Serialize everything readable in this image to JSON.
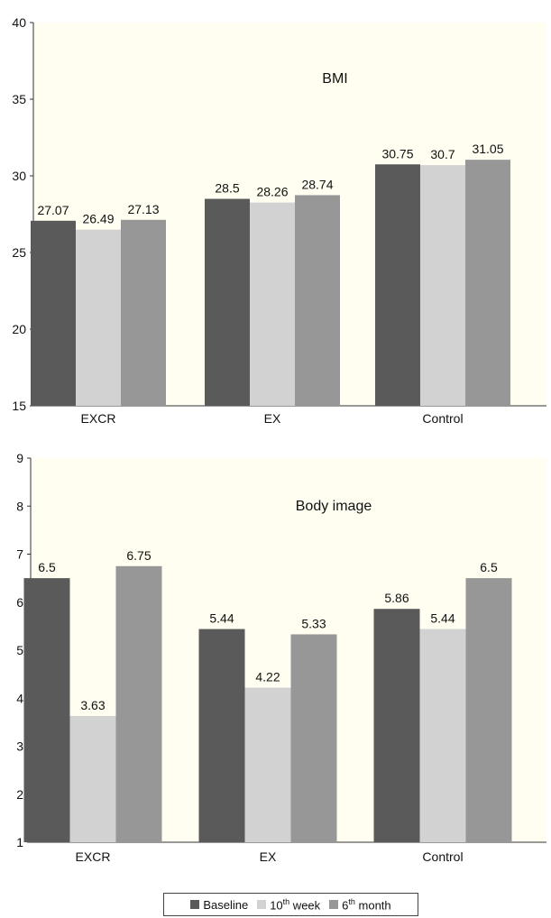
{
  "colors": {
    "plot_bg": "#fffef0",
    "baseline": "#5a5a5a",
    "week10": "#d2d2d2",
    "month6": "#979797",
    "axis": "#333333"
  },
  "legend": [
    {
      "key": "baseline",
      "pre": "Baseline",
      "sup": "",
      "post": ""
    },
    {
      "key": "week10",
      "pre": "10",
      "sup": "th",
      "post": " week"
    },
    {
      "key": "month6",
      "pre": "6",
      "sup": "th",
      "post": " month"
    }
  ],
  "chart_data": [
    {
      "type": "bar",
      "title": "BMI",
      "categories": [
        "EXCR",
        "EX",
        "Control"
      ],
      "ylim": [
        15,
        40
      ],
      "yticks": [
        15,
        20,
        25,
        30,
        35,
        40
      ],
      "grid": false,
      "legend_position": "bottom",
      "series": [
        {
          "name": "Baseline",
          "key": "baseline",
          "values": [
            27.07,
            28.5,
            30.75
          ],
          "labels": [
            "27.07",
            "28.5",
            "30.75"
          ]
        },
        {
          "name": "10th week",
          "key": "week10",
          "values": [
            26.49,
            28.26,
            30.7
          ],
          "labels": [
            "26.49",
            "28.26",
            "30.7"
          ]
        },
        {
          "name": "6th month",
          "key": "month6",
          "values": [
            27.13,
            28.74,
            31.05
          ],
          "labels": [
            "27.13",
            "28.74",
            "31.05"
          ]
        }
      ]
    },
    {
      "type": "bar",
      "title": "Body image",
      "categories": [
        "EXCR",
        "EX",
        "Control"
      ],
      "ylim": [
        1,
        9
      ],
      "yticks": [
        1,
        2,
        3,
        4,
        5,
        6,
        7,
        8,
        9
      ],
      "grid": false,
      "legend_position": "bottom",
      "series": [
        {
          "name": "Baseline",
          "key": "baseline",
          "values": [
            6.5,
            5.44,
            5.86
          ],
          "labels": [
            "6.5",
            "5.44",
            "5.86"
          ]
        },
        {
          "name": "10th week",
          "key": "week10",
          "values": [
            3.63,
            4.22,
            5.44
          ],
          "labels": [
            "3.63",
            "4.22",
            "5.44"
          ]
        },
        {
          "name": "6th month",
          "key": "month6",
          "values": [
            6.75,
            5.33,
            6.5
          ],
          "labels": [
            "6.75",
            "5.33",
            "6.5"
          ]
        }
      ]
    }
  ]
}
